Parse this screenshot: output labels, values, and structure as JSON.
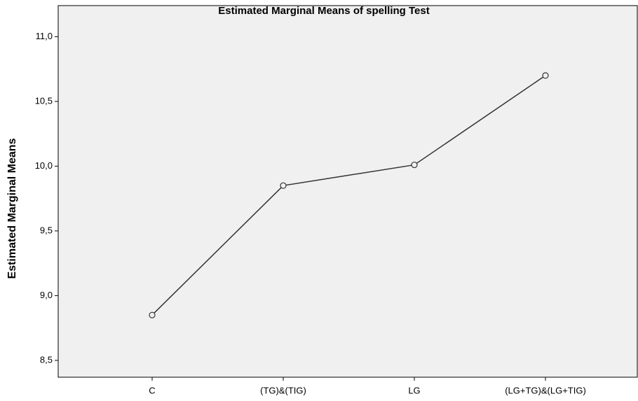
{
  "chart_data": {
    "type": "line",
    "title": "Estimated Marginal Means of spelling Test",
    "ylabel": "Estimated Marginal Means",
    "categories": [
      "C",
      "(TG)&(TIG)",
      "LG",
      "(LG+TG)&(LG+TIG)"
    ],
    "values": [
      8.85,
      9.85,
      10.01,
      10.7
    ],
    "color": "#333333",
    "ylim": [
      8.37,
      11.24
    ],
    "yticks": [
      {
        "value": 8.5,
        "label": "8,5"
      },
      {
        "value": 9.0,
        "label": "9,0"
      },
      {
        "value": 9.5,
        "label": "9,5"
      },
      {
        "value": 10.0,
        "label": "10,0"
      },
      {
        "value": 10.5,
        "label": "10,5"
      },
      {
        "value": 11.0,
        "label": "11,0"
      }
    ],
    "grid": false
  }
}
